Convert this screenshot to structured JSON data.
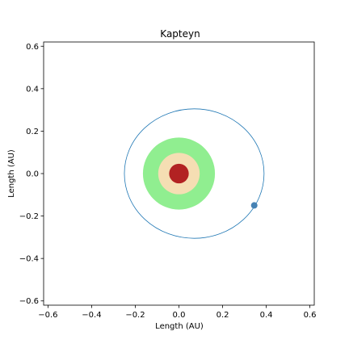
{
  "chart_data": {
    "type": "scatter",
    "title": "Kapteyn",
    "xlabel": "Length (AU)",
    "ylabel": "Length (AU)",
    "xlim": [
      -0.62,
      0.62
    ],
    "ylim": [
      -0.62,
      0.62
    ],
    "x_ticks": [
      "−0.6",
      "−0.4",
      "−0.2",
      "0.0",
      "0.2",
      "0.4",
      "0.6"
    ],
    "y_ticks": [
      "−0.6",
      "−0.4",
      "−0.2",
      "0.0",
      "0.2",
      "0.4",
      "0.6"
    ],
    "x_tick_values": [
      -0.6,
      -0.4,
      -0.2,
      0.0,
      0.2,
      0.4,
      0.6
    ],
    "y_tick_values": [
      -0.6,
      -0.4,
      -0.2,
      0.0,
      0.2,
      0.4,
      0.6
    ],
    "grid": false,
    "habitable_zone": {
      "inner_au": 0.095,
      "outer_au": 0.165,
      "inner_color": "#f5deb3",
      "outer_color": "#90ee90"
    },
    "star": {
      "x": 0.0,
      "y": 0.0,
      "radius_au": 0.045,
      "color": "#b22222"
    },
    "orbit": {
      "center_x": 0.07,
      "center_y": 0.0,
      "semi_major_au": 0.32,
      "semi_minor_au": 0.305,
      "color": "#1f77b4"
    },
    "planet": {
      "x": 0.345,
      "y": -0.15,
      "color": "#4682b4"
    }
  }
}
